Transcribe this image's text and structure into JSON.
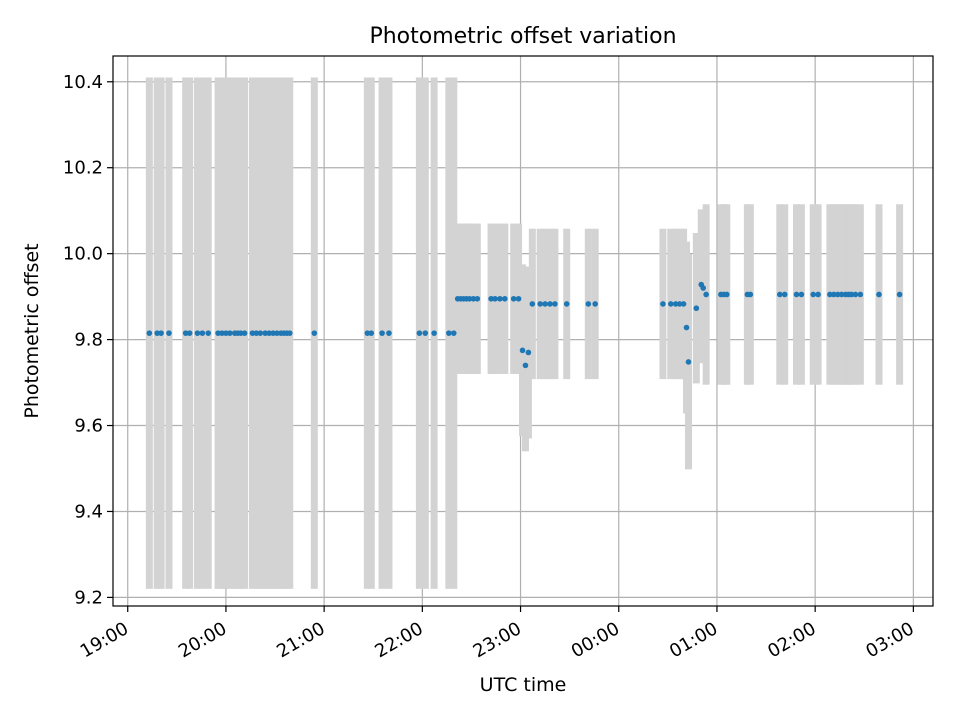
{
  "chart_data": {
    "type": "scatter",
    "title": "Photometric offset variation",
    "xlabel": "UTC time",
    "ylabel": "Photometric offset",
    "x_unit": "hours since 19:00 UTC",
    "xlim": [
      -0.15,
      8.2
    ],
    "ylim": [
      9.18,
      10.46
    ],
    "grid": true,
    "colors": {
      "point": "#1f77b4",
      "errorbar": "#d3d3d3",
      "grid": "#b0b0b0"
    },
    "x_ticks": [
      {
        "x": 0,
        "label": "19:00"
      },
      {
        "x": 1,
        "label": "20:00"
      },
      {
        "x": 2,
        "label": "21:00"
      },
      {
        "x": 3,
        "label": "22:00"
      },
      {
        "x": 4,
        "label": "23:00"
      },
      {
        "x": 5,
        "label": "00:00"
      },
      {
        "x": 6,
        "label": "01:00"
      },
      {
        "x": 7,
        "label": "02:00"
      },
      {
        "x": 8,
        "label": "03:00"
      }
    ],
    "y_ticks": [
      {
        "y": 9.2,
        "label": "9.2"
      },
      {
        "y": 9.4,
        "label": "9.4"
      },
      {
        "y": 9.6,
        "label": "9.6"
      },
      {
        "y": 9.8,
        "label": "9.8"
      },
      {
        "y": 10.0,
        "label": "10.0"
      },
      {
        "y": 10.2,
        "label": "10.2"
      },
      {
        "y": 10.4,
        "label": "10.4"
      }
    ],
    "points": [
      {
        "x": 0.22,
        "y": 9.815,
        "err": 0.595
      },
      {
        "x": 0.3,
        "y": 9.815,
        "err": 0.595
      },
      {
        "x": 0.34,
        "y": 9.815,
        "err": 0.595
      },
      {
        "x": 0.42,
        "y": 9.815,
        "err": 0.595
      },
      {
        "x": 0.59,
        "y": 9.815,
        "err": 0.595
      },
      {
        "x": 0.63,
        "y": 9.815,
        "err": 0.595
      },
      {
        "x": 0.71,
        "y": 9.815,
        "err": 0.595
      },
      {
        "x": 0.76,
        "y": 9.815,
        "err": 0.595
      },
      {
        "x": 0.82,
        "y": 9.815,
        "err": 0.595
      },
      {
        "x": 0.92,
        "y": 9.815,
        "err": 0.595
      },
      {
        "x": 0.96,
        "y": 9.815,
        "err": 0.595
      },
      {
        "x": 1.0,
        "y": 9.815,
        "err": 0.595
      },
      {
        "x": 1.04,
        "y": 9.815,
        "err": 0.595
      },
      {
        "x": 1.09,
        "y": 9.815,
        "err": 0.595
      },
      {
        "x": 1.12,
        "y": 9.815,
        "err": 0.595
      },
      {
        "x": 1.15,
        "y": 9.815,
        "err": 0.595
      },
      {
        "x": 1.19,
        "y": 9.815,
        "err": 0.595
      },
      {
        "x": 1.27,
        "y": 9.815,
        "err": 0.595
      },
      {
        "x": 1.31,
        "y": 9.815,
        "err": 0.595
      },
      {
        "x": 1.35,
        "y": 9.815,
        "err": 0.595
      },
      {
        "x": 1.4,
        "y": 9.815,
        "err": 0.595
      },
      {
        "x": 1.44,
        "y": 9.815,
        "err": 0.595
      },
      {
        "x": 1.48,
        "y": 9.815,
        "err": 0.595
      },
      {
        "x": 1.52,
        "y": 9.815,
        "err": 0.595
      },
      {
        "x": 1.56,
        "y": 9.815,
        "err": 0.595
      },
      {
        "x": 1.59,
        "y": 9.815,
        "err": 0.595
      },
      {
        "x": 1.62,
        "y": 9.815,
        "err": 0.595
      },
      {
        "x": 1.65,
        "y": 9.815,
        "err": 0.595
      },
      {
        "x": 1.9,
        "y": 9.815,
        "err": 0.595
      },
      {
        "x": 2.44,
        "y": 9.815,
        "err": 0.595
      },
      {
        "x": 2.48,
        "y": 9.815,
        "err": 0.595
      },
      {
        "x": 2.59,
        "y": 9.815,
        "err": 0.595
      },
      {
        "x": 2.66,
        "y": 9.815,
        "err": 0.595
      },
      {
        "x": 2.97,
        "y": 9.815,
        "err": 0.595
      },
      {
        "x": 3.03,
        "y": 9.815,
        "err": 0.595
      },
      {
        "x": 3.12,
        "y": 9.815,
        "err": 0.595
      },
      {
        "x": 3.27,
        "y": 9.815,
        "err": 0.595
      },
      {
        "x": 3.32,
        "y": 9.815,
        "err": 0.595
      },
      {
        "x": 3.36,
        "y": 9.895,
        "err": 0.175
      },
      {
        "x": 3.39,
        "y": 9.895,
        "err": 0.175
      },
      {
        "x": 3.42,
        "y": 9.895,
        "err": 0.175
      },
      {
        "x": 3.45,
        "y": 9.895,
        "err": 0.175
      },
      {
        "x": 3.48,
        "y": 9.895,
        "err": 0.175
      },
      {
        "x": 3.52,
        "y": 9.895,
        "err": 0.175
      },
      {
        "x": 3.56,
        "y": 9.895,
        "err": 0.175
      },
      {
        "x": 3.7,
        "y": 9.895,
        "err": 0.175
      },
      {
        "x": 3.74,
        "y": 9.895,
        "err": 0.175
      },
      {
        "x": 3.79,
        "y": 9.895,
        "err": 0.175
      },
      {
        "x": 3.84,
        "y": 9.895,
        "err": 0.175
      },
      {
        "x": 3.93,
        "y": 9.895,
        "err": 0.175
      },
      {
        "x": 3.98,
        "y": 9.895,
        "err": 0.175
      },
      {
        "x": 4.02,
        "y": 9.775,
        "err": 0.2
      },
      {
        "x": 4.05,
        "y": 9.74,
        "err": 0.2
      },
      {
        "x": 4.08,
        "y": 9.77,
        "err": 0.2
      },
      {
        "x": 4.12,
        "y": 9.883,
        "err": 0.175
      },
      {
        "x": 4.2,
        "y": 9.883,
        "err": 0.175
      },
      {
        "x": 4.25,
        "y": 9.883,
        "err": 0.175
      },
      {
        "x": 4.3,
        "y": 9.883,
        "err": 0.175
      },
      {
        "x": 4.35,
        "y": 9.883,
        "err": 0.175
      },
      {
        "x": 4.47,
        "y": 9.883,
        "err": 0.175
      },
      {
        "x": 4.69,
        "y": 9.883,
        "err": 0.175
      },
      {
        "x": 4.76,
        "y": 9.883,
        "err": 0.175
      },
      {
        "x": 5.45,
        "y": 9.883,
        "err": 0.175
      },
      {
        "x": 5.53,
        "y": 9.883,
        "err": 0.175
      },
      {
        "x": 5.58,
        "y": 9.883,
        "err": 0.175
      },
      {
        "x": 5.62,
        "y": 9.883,
        "err": 0.175
      },
      {
        "x": 5.66,
        "y": 9.883,
        "err": 0.175
      },
      {
        "x": 5.69,
        "y": 9.828,
        "err": 0.2
      },
      {
        "x": 5.71,
        "y": 9.748,
        "err": 0.25
      },
      {
        "x": 5.79,
        "y": 9.873,
        "err": 0.175
      },
      {
        "x": 5.84,
        "y": 9.928,
        "err": 0.175
      },
      {
        "x": 5.86,
        "y": 9.92,
        "err": 0.175
      },
      {
        "x": 5.89,
        "y": 9.905,
        "err": 0.21
      },
      {
        "x": 6.04,
        "y": 9.905,
        "err": 0.21
      },
      {
        "x": 6.07,
        "y": 9.905,
        "err": 0.21
      },
      {
        "x": 6.1,
        "y": 9.905,
        "err": 0.21
      },
      {
        "x": 6.31,
        "y": 9.905,
        "err": 0.21
      },
      {
        "x": 6.34,
        "y": 9.905,
        "err": 0.21
      },
      {
        "x": 6.64,
        "y": 9.905,
        "err": 0.21
      },
      {
        "x": 6.69,
        "y": 9.905,
        "err": 0.21
      },
      {
        "x": 6.81,
        "y": 9.905,
        "err": 0.21
      },
      {
        "x": 6.86,
        "y": 9.905,
        "err": 0.21
      },
      {
        "x": 6.98,
        "y": 9.905,
        "err": 0.21
      },
      {
        "x": 7.03,
        "y": 9.905,
        "err": 0.21
      },
      {
        "x": 7.15,
        "y": 9.905,
        "err": 0.21
      },
      {
        "x": 7.19,
        "y": 9.905,
        "err": 0.21
      },
      {
        "x": 7.23,
        "y": 9.905,
        "err": 0.21
      },
      {
        "x": 7.27,
        "y": 9.905,
        "err": 0.21
      },
      {
        "x": 7.31,
        "y": 9.905,
        "err": 0.21
      },
      {
        "x": 7.34,
        "y": 9.905,
        "err": 0.21
      },
      {
        "x": 7.37,
        "y": 9.905,
        "err": 0.21
      },
      {
        "x": 7.41,
        "y": 9.905,
        "err": 0.21
      },
      {
        "x": 7.46,
        "y": 9.905,
        "err": 0.21
      },
      {
        "x": 7.65,
        "y": 9.905,
        "err": 0.21
      },
      {
        "x": 7.86,
        "y": 9.905,
        "err": 0.21
      }
    ]
  }
}
